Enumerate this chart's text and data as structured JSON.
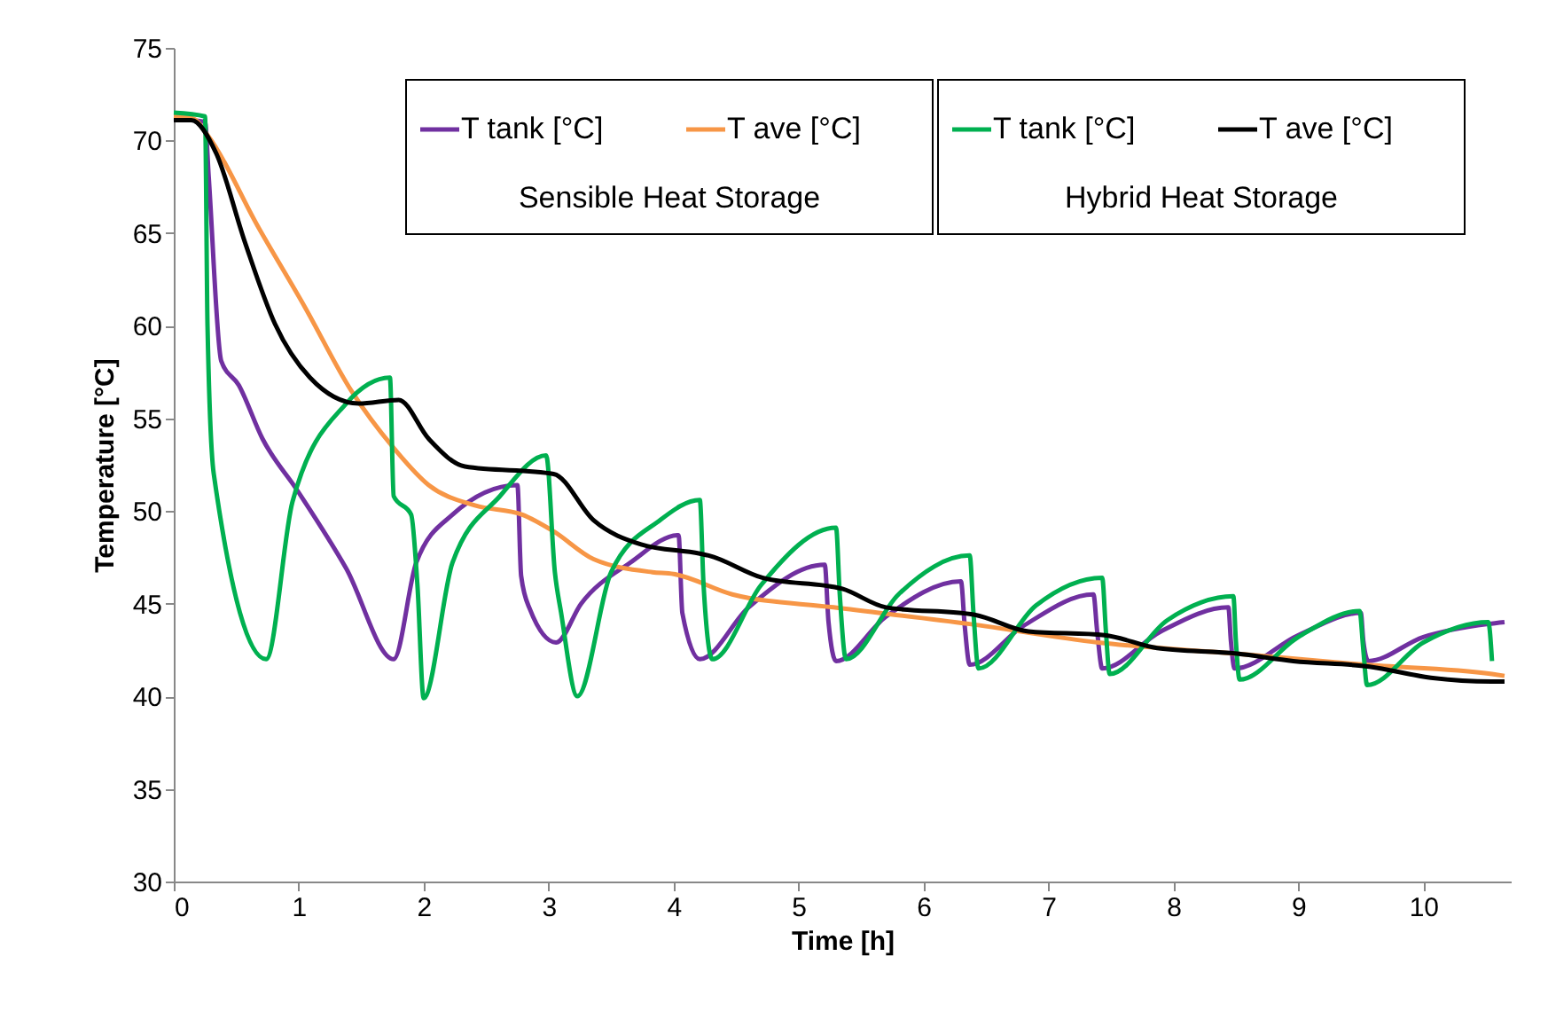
{
  "chart_data": {
    "type": "line",
    "xlabel": "Time [h]",
    "ylabel": "Temperature [°C]",
    "xlim": [
      0,
      10.7
    ],
    "xticks": [
      0,
      1,
      2,
      3,
      4,
      5,
      6,
      7,
      8,
      9,
      10
    ],
    "ylim": [
      30,
      75
    ],
    "yticks": [
      30,
      35,
      40,
      45,
      50,
      55,
      60,
      65,
      70,
      75
    ],
    "grid": false,
    "legend": "top right",
    "annotations": [
      "Sensible Heat Storage",
      "Hybrid Heat Storage"
    ],
    "series": [
      {
        "name": "T tank  [°C]",
        "color": "#7030a0",
        "x": [
          0,
          0.25,
          0.28,
          0.38,
          0.52,
          0.71,
          0.99,
          1.38,
          1.76,
          1.94,
          2.23,
          2.75,
          2.78,
          2.85,
          3.06,
          3.26,
          3.65,
          4.04,
          4.07,
          4.21,
          4.6,
          5.21,
          5.24,
          5.3,
          5.7,
          6.3,
          6.33,
          6.37,
          6.8,
          7.36,
          7.39,
          7.43,
          7.9,
          8.44,
          8.46,
          8.49,
          9.0,
          9.5,
          9.52,
          9.56,
          10.0,
          10.52,
          10.65
        ],
        "values": [
          71.2,
          71.0,
          68.0,
          58.1,
          56.8,
          53.9,
          51.1,
          46.9,
          42.0,
          47.2,
          49.8,
          51.4,
          46.5,
          44.7,
          42.9,
          45.0,
          47.2,
          48.7,
          44.5,
          42.0,
          44.8,
          47.1,
          44.0,
          41.9,
          44.3,
          46.2,
          43.8,
          41.7,
          43.8,
          45.5,
          43.5,
          41.5,
          43.5,
          44.8,
          43.0,
          41.5,
          43.3,
          44.5,
          43.0,
          41.9,
          43.2,
          43.9,
          44.0
        ]
      },
      {
        "name": "T ave [°C]",
        "color": "#f79646",
        "x": [
          0,
          0.15,
          0.28,
          0.67,
          1.05,
          1.42,
          1.76,
          2.04,
          2.41,
          2.79,
          3.04,
          3.36,
          3.83,
          4.0,
          4.47,
          5.28,
          6.37,
          7.4,
          8.5,
          9.53,
          10.55,
          10.65
        ],
        "values": [
          71.3,
          71.2,
          70.2,
          65.4,
          61.0,
          56.5,
          53.4,
          51.4,
          50.3,
          49.8,
          48.9,
          47.4,
          46.7,
          46.6,
          45.5,
          44.8,
          43.9,
          42.9,
          42.3,
          41.7,
          41.2,
          41.1
        ]
      },
      {
        "name": "T tank  [°C]",
        "color": "#00b050",
        "x": [
          0,
          0.25,
          0.27,
          0.32,
          0.74,
          0.95,
          1.38,
          1.73,
          1.76,
          1.9,
          1.95,
          2.0,
          2.23,
          2.61,
          2.98,
          3.05,
          3.1,
          3.23,
          3.5,
          3.89,
          4.21,
          4.24,
          4.31,
          4.7,
          5.3,
          5.33,
          5.38,
          5.8,
          6.37,
          6.4,
          6.44,
          6.9,
          7.43,
          7.46,
          7.49,
          7.95,
          8.48,
          8.5,
          8.53,
          9.0,
          9.49,
          9.52,
          9.55,
          10.0,
          10.52,
          10.55
        ],
        "values": [
          71.5,
          71.3,
          60.0,
          52.0,
          42.0,
          50.5,
          55.8,
          57.2,
          50.8,
          49.8,
          46.0,
          39.9,
          47.2,
          50.8,
          53.0,
          46.7,
          44.5,
          40.0,
          46.7,
          49.5,
          50.6,
          46.0,
          42.0,
          46.0,
          49.1,
          45.5,
          42.0,
          45.5,
          47.6,
          44.5,
          41.5,
          44.9,
          46.4,
          43.5,
          41.2,
          44.1,
          45.4,
          43.0,
          40.9,
          43.2,
          44.6,
          42.5,
          40.6,
          42.9,
          44.0,
          41.9
        ]
      },
      {
        "name": "T ave [°C]",
        "color": "#000000",
        "x": [
          0,
          0.14,
          0.34,
          0.57,
          0.81,
          1.09,
          1.48,
          1.8,
          2.04,
          2.33,
          3.04,
          3.36,
          3.74,
          4.21,
          4.28,
          4.71,
          5.35,
          5.7,
          6.41,
          6.84,
          7.45,
          7.87,
          8.51,
          8.96,
          9.57,
          10.06,
          10.55,
          10.65
        ],
        "values": [
          71.1,
          71.1,
          69.3,
          64.5,
          60.1,
          57.2,
          55.8,
          56.0,
          53.9,
          52.4,
          52.0,
          49.5,
          48.2,
          47.7,
          47.6,
          46.4,
          45.8,
          44.8,
          44.4,
          43.5,
          43.3,
          42.6,
          42.3,
          41.9,
          41.6,
          41.0,
          40.8,
          40.8
        ]
      }
    ]
  }
}
